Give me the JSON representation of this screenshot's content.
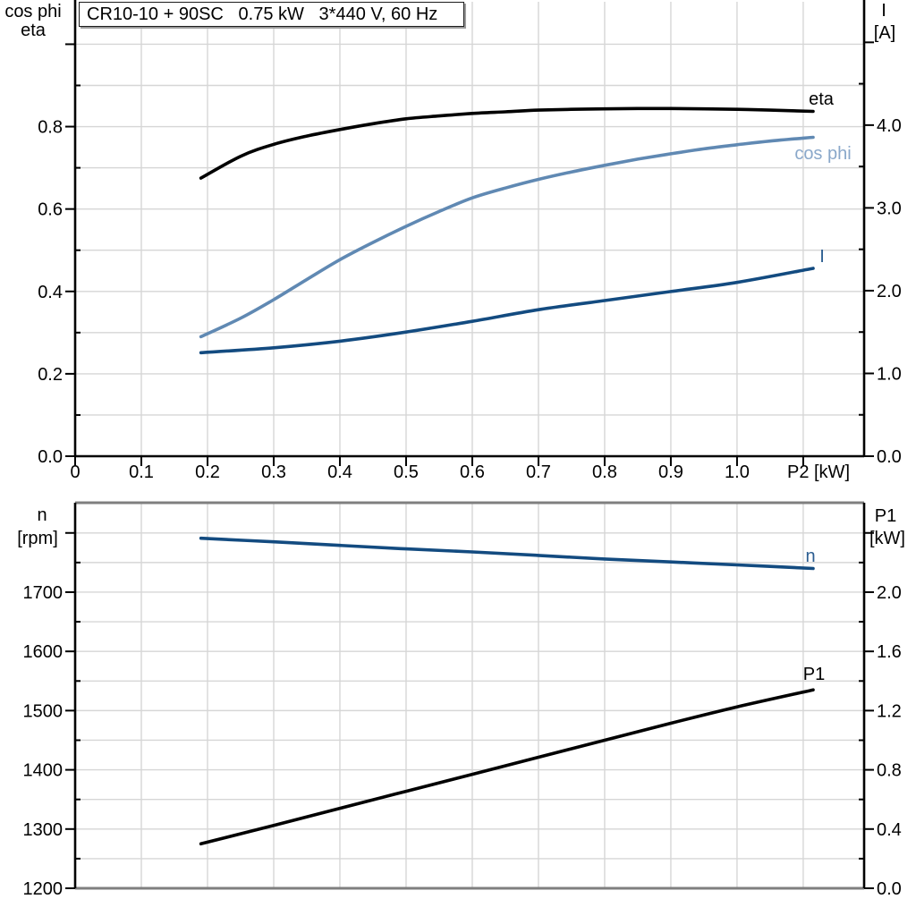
{
  "title_box": {
    "text": "CR10-10 + 90SC   0.75 kW   3*440 V, 60 Hz"
  },
  "colors": {
    "background": "#ffffff",
    "axis": "#000000",
    "grid": "#d6d6d6",
    "frame_gray": "#7f7f7f",
    "curve_black": "#000000",
    "curve_dark_blue": "#134b80",
    "curve_light_blue": "#6089b3",
    "label_dark_blue": "#2b5d91",
    "label_light_blue": "#8aa8ca",
    "text": "#000000"
  },
  "chart_data": [
    {
      "id": "top",
      "type": "line",
      "title": "CR10-10 + 90SC   0.75 kW   3*440 V, 60 Hz",
      "x_axis": {
        "label": "P2 [kW]",
        "min": 0,
        "max": 1.192,
        "grid_step": 0.1,
        "tick_step": 0.1,
        "tick_labels": [
          "0",
          "0.1",
          "0.2",
          "0.3",
          "0.4",
          "0.5",
          "0.6",
          "0.7",
          "0.8",
          "0.9",
          "1.0"
        ],
        "end_tick_value": 1.1
      },
      "left_axis": {
        "title_lines": [
          "cos phi",
          "eta"
        ],
        "min": 0,
        "max": 1.103,
        "major_step": 0.2,
        "label_max": 0.8,
        "minor_step": 0.1,
        "decimals": 1
      },
      "right_axis": {
        "title_lines": [
          "I",
          "[A]"
        ],
        "min": 0,
        "max": 5.49,
        "major_step": 1.0,
        "label_max": 4.0,
        "minor_step": 0.5,
        "decimals": 1
      },
      "series": [
        {
          "name": "eta",
          "label": "eta",
          "axis": "left",
          "color": "curve_black",
          "label_color": "curve_black",
          "points": [
            [
              0.19,
              0.675
            ],
            [
              0.25,
              0.728
            ],
            [
              0.3,
              0.757
            ],
            [
              0.35,
              0.777
            ],
            [
              0.4,
              0.793
            ],
            [
              0.45,
              0.807
            ],
            [
              0.5,
              0.819
            ],
            [
              0.55,
              0.826
            ],
            [
              0.6,
              0.832
            ],
            [
              0.65,
              0.836
            ],
            [
              0.7,
              0.84
            ],
            [
              0.75,
              0.842
            ],
            [
              0.8,
              0.843
            ],
            [
              0.85,
              0.844
            ],
            [
              0.9,
              0.844
            ],
            [
              0.95,
              0.843
            ],
            [
              1.0,
              0.842
            ],
            [
              1.05,
              0.84
            ],
            [
              1.115,
              0.837
            ]
          ]
        },
        {
          "name": "cos phi",
          "label": "cos phi",
          "axis": "left",
          "color": "curve_light_blue",
          "label_color": "label_light_blue",
          "points": [
            [
              0.19,
              0.29
            ],
            [
              0.25,
              0.335
            ],
            [
              0.3,
              0.38
            ],
            [
              0.35,
              0.429
            ],
            [
              0.4,
              0.477
            ],
            [
              0.45,
              0.519
            ],
            [
              0.5,
              0.558
            ],
            [
              0.55,
              0.594
            ],
            [
              0.6,
              0.627
            ],
            [
              0.65,
              0.651
            ],
            [
              0.7,
              0.672
            ],
            [
              0.75,
              0.69
            ],
            [
              0.8,
              0.706
            ],
            [
              0.85,
              0.721
            ],
            [
              0.9,
              0.734
            ],
            [
              0.95,
              0.746
            ],
            [
              1.0,
              0.756
            ],
            [
              1.05,
              0.765
            ],
            [
              1.115,
              0.774
            ]
          ]
        },
        {
          "name": "I",
          "label": "I",
          "axis": "right",
          "color": "curve_dark_blue",
          "label_color": "label_dark_blue",
          "points": [
            [
              0.19,
              1.25
            ],
            [
              0.3,
              1.31
            ],
            [
              0.4,
              1.39
            ],
            [
              0.5,
              1.5
            ],
            [
              0.6,
              1.63
            ],
            [
              0.7,
              1.77
            ],
            [
              0.8,
              1.88
            ],
            [
              0.9,
              1.99
            ],
            [
              1.0,
              2.1
            ],
            [
              1.115,
              2.27
            ]
          ]
        }
      ]
    },
    {
      "id": "bottom",
      "type": "line",
      "x_axis": {
        "min": 0,
        "max": 1.192,
        "grid_step": 0.1,
        "tick_labels": null
      },
      "left_axis": {
        "title_lines": [
          "n",
          "[rpm]"
        ],
        "min": 1200,
        "max": 1851,
        "major_step": 100,
        "label_max": 1700,
        "minor_step": 50,
        "decimals": 0
      },
      "right_axis": {
        "title_lines": [
          "P1",
          "[kW]"
        ],
        "min": 0,
        "max": 2.604,
        "major_step": 0.4,
        "label_max": 2.0,
        "minor_step": 0.2,
        "decimals": 1
      },
      "series": [
        {
          "name": "n",
          "label": "n",
          "axis": "left",
          "color": "curve_dark_blue",
          "label_color": "label_dark_blue",
          "points": [
            [
              0.19,
              1791
            ],
            [
              0.3,
              1785
            ],
            [
              0.4,
              1779
            ],
            [
              0.5,
              1773
            ],
            [
              0.6,
              1768
            ],
            [
              0.7,
              1762
            ],
            [
              0.8,
              1756
            ],
            [
              0.9,
              1751
            ],
            [
              1.0,
              1746
            ],
            [
              1.115,
              1740
            ]
          ]
        },
        {
          "name": "P1",
          "label": "P1",
          "axis": "right",
          "color": "curve_black",
          "label_color": "curve_black",
          "points": [
            [
              0.19,
              0.3
            ],
            [
              0.3,
              0.425
            ],
            [
              0.4,
              0.54
            ],
            [
              0.5,
              0.655
            ],
            [
              0.6,
              0.77
            ],
            [
              0.7,
              0.885
            ],
            [
              0.8,
              1.0
            ],
            [
              0.9,
              1.115
            ],
            [
              1.0,
              1.225
            ],
            [
              1.115,
              1.34
            ]
          ]
        }
      ]
    }
  ]
}
